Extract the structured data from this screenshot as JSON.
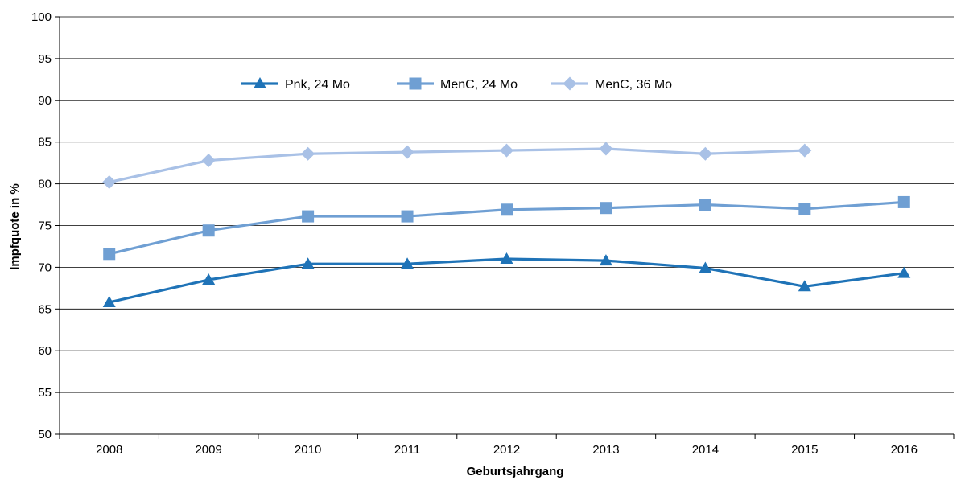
{
  "chart_data": {
    "type": "line",
    "xlabel": "Geburtsjahrgang",
    "ylabel": "Impfquote in %",
    "categories": [
      "2008",
      "2009",
      "2010",
      "2011",
      "2012",
      "2013",
      "2014",
      "2015",
      "2016"
    ],
    "ylim": [
      50,
      100
    ],
    "yticks": [
      "50",
      "55",
      "60",
      "65",
      "70",
      "75",
      "80",
      "85",
      "90",
      "95",
      "100"
    ],
    "grid": "horizontal",
    "legend_position": "top-center",
    "series": [
      {
        "name": "Pnk, 24 Mo",
        "marker": "triangle",
        "color": "#1f73b7",
        "values": [
          65.8,
          68.5,
          70.4,
          70.4,
          71.0,
          70.8,
          69.9,
          67.7,
          69.3
        ]
      },
      {
        "name": "MenC, 24 Mo",
        "marker": "square",
        "color": "#6f9fd3",
        "values": [
          71.6,
          74.4,
          76.1,
          76.1,
          76.9,
          77.1,
          77.5,
          77.0,
          77.8
        ]
      },
      {
        "name": "MenC, 36 Mo",
        "marker": "diamond",
        "color": "#a9c1e6",
        "values": [
          80.2,
          82.8,
          83.6,
          83.8,
          84.0,
          84.2,
          83.6,
          84.0,
          null
        ]
      }
    ]
  }
}
